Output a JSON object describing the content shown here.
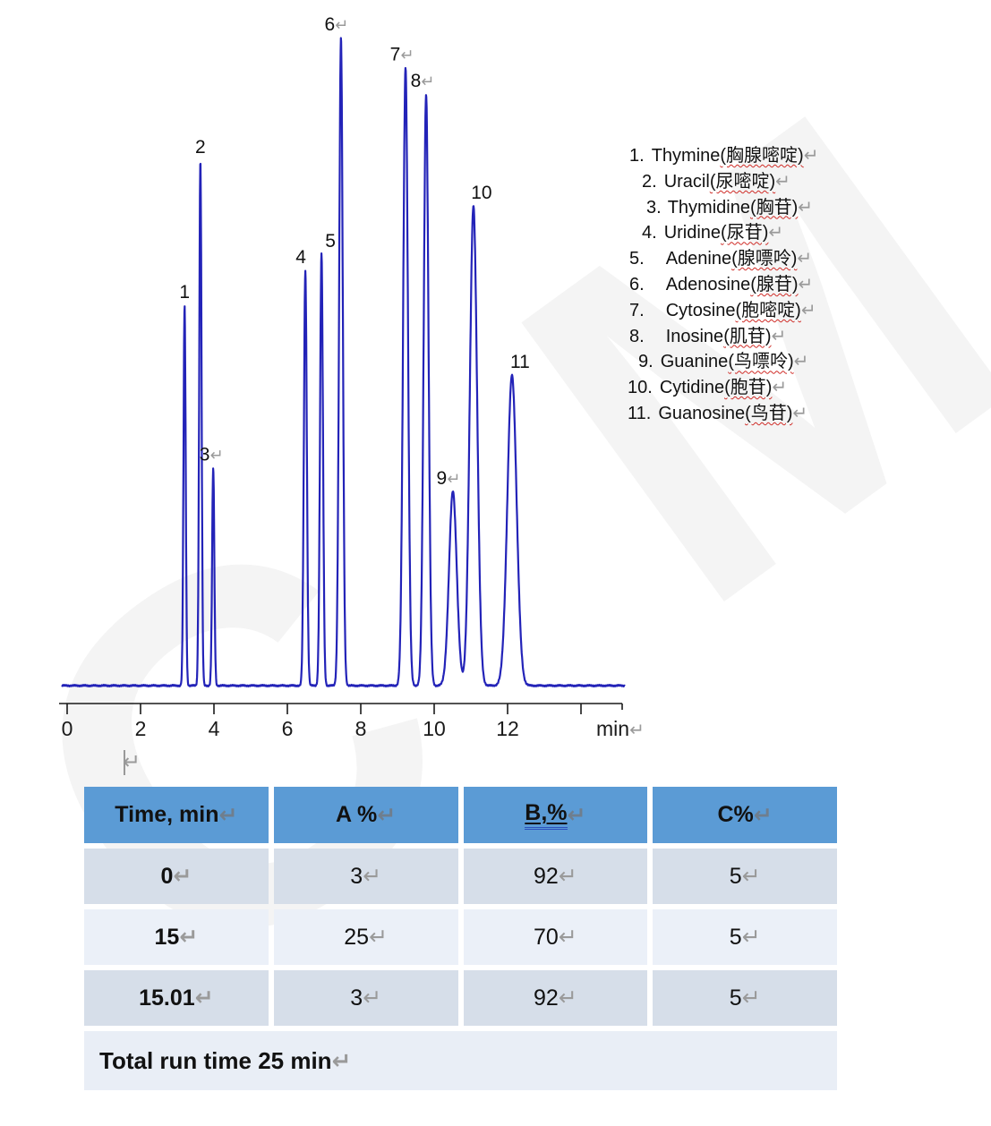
{
  "watermark": {
    "letters": [
      "C",
      "M"
    ],
    "color": "#f4f4f4"
  },
  "stray_paragraph_mark": "↵",
  "paragraph_mark": "↵",
  "chart_data": {
    "type": "line",
    "title": "",
    "xlabel": "min",
    "ylabel": "",
    "line_color": "#2323b8",
    "axis_color": "#1a1a1a",
    "x_axis": {
      "labeled_ticks": [
        0,
        2,
        4,
        6,
        8,
        10,
        12
      ],
      "unlabeled_ticks": [
        14
      ],
      "unit_label": "min",
      "range_min": [
        0,
        15.2
      ],
      "grid": false
    },
    "y_axis_shown": false,
    "heights_note": "rel_height is peak height relative to tallest peak (6, Adenosine)",
    "peaks": [
      {
        "num": "1",
        "compound": "Thymine",
        "rt_min": 3.2,
        "rel_height": 0.587,
        "sigma_min": 0.03,
        "label_dx": 0,
        "label_mark": false
      },
      {
        "num": "2",
        "compound": "Uracil",
        "rt_min": 3.63,
        "rel_height": 0.811,
        "sigma_min": 0.032,
        "label_dx": 0,
        "label_mark": false
      },
      {
        "num": "3",
        "compound": "Thymidine",
        "rt_min": 3.98,
        "rel_height": 0.336,
        "sigma_min": 0.03,
        "label_dx": -2,
        "label_mark": true
      },
      {
        "num": "4",
        "compound": "Uridine",
        "rt_min": 6.49,
        "rel_height": 0.641,
        "sigma_min": 0.04,
        "label_dx": -5,
        "label_mark": false
      },
      {
        "num": "5",
        "compound": "Adenine",
        "rt_min": 6.93,
        "rel_height": 0.666,
        "sigma_min": 0.04,
        "label_dx": 10,
        "label_mark": false
      },
      {
        "num": "6",
        "compound": "Adenosine",
        "rt_min": 7.46,
        "rel_height": 1.0,
        "sigma_min": 0.05,
        "label_dx": -5,
        "label_mark": true
      },
      {
        "num": "7",
        "compound": "Cytosine",
        "rt_min": 9.22,
        "rel_height": 0.954,
        "sigma_min": 0.065,
        "label_dx": -4,
        "label_mark": true
      },
      {
        "num": "8",
        "compound": "Inosine",
        "rt_min": 9.78,
        "rel_height": 0.913,
        "sigma_min": 0.065,
        "label_dx": -4,
        "label_mark": true
      },
      {
        "num": "9",
        "compound": "Guanine",
        "rt_min": 10.51,
        "rel_height": 0.3,
        "sigma_min": 0.105,
        "label_dx": -5,
        "label_mark": true
      },
      {
        "num": "10",
        "compound": "Cytidine",
        "rt_min": 11.07,
        "rel_height": 0.74,
        "sigma_min": 0.1,
        "label_dx": 9,
        "label_mark": false
      },
      {
        "num": "11",
        "compound": "Guanosine",
        "rt_min": 12.12,
        "rel_height": 0.479,
        "sigma_min": 0.125,
        "label_dx": 9,
        "label_mark": false
      }
    ]
  },
  "legend": {
    "items": [
      {
        "num": "1.",
        "name": "Thymine ",
        "zh": "(胸腺嘧啶)",
        "indent": 2,
        "gap": 8
      },
      {
        "num": "2.",
        "name": "Uracil ",
        "zh": "(尿嘧啶)",
        "indent": 16,
        "gap": 8
      },
      {
        "num": "3.",
        "name": "Thymidine",
        "zh": "(胸苷)",
        "indent": 21,
        "gap": 7
      },
      {
        "num": "4.",
        "name": "Uridine",
        "zh": "(尿苷)",
        "indent": 16,
        "gap": 8
      },
      {
        "num": "5.",
        "name": "Adenine",
        "zh": "(腺嘌呤)",
        "indent": 2,
        "gap": 24
      },
      {
        "num": "6.",
        "name": "Adenosine",
        "zh": "(腺苷)",
        "indent": 2,
        "gap": 24
      },
      {
        "num": "7.",
        "name": "Cytosine ",
        "zh": "(胞嘧啶)",
        "indent": 2,
        "gap": 24
      },
      {
        "num": "8.",
        "name": "Inosine ",
        "zh": "(肌苷)",
        "indent": 2,
        "gap": 24
      },
      {
        "num": "9.",
        "name": "Guanine ",
        "zh": "(鸟嘌呤)",
        "indent": 12,
        "gap": 8
      },
      {
        "num": "10.",
        "name": "Cytidine ",
        "zh": "(胞苷)",
        "indent": 0,
        "gap": 8
      },
      {
        "num": "11.",
        "name": "Guanosine ",
        "zh": "(鸟苷)",
        "indent": 0,
        "gap": 8
      }
    ]
  },
  "gradient_table": {
    "headers": [
      {
        "text": "Time, min",
        "underline": false
      },
      {
        "text": "A %",
        "underline": false
      },
      {
        "text": "B,%",
        "underline": true
      },
      {
        "text": "C%",
        "underline": false
      }
    ],
    "rows": [
      [
        "0",
        "3",
        "92",
        "5"
      ],
      [
        "15",
        "25",
        "70",
        "5"
      ],
      [
        "15.01",
        "3",
        "92",
        "5"
      ]
    ],
    "footer": "Total run time 25 min",
    "header_bg": "#5B9BD5",
    "row_dark_bg": "#D6DEE9",
    "row_light_bg": "#EBF0F8",
    "underline_double_color": "#2a52be"
  }
}
